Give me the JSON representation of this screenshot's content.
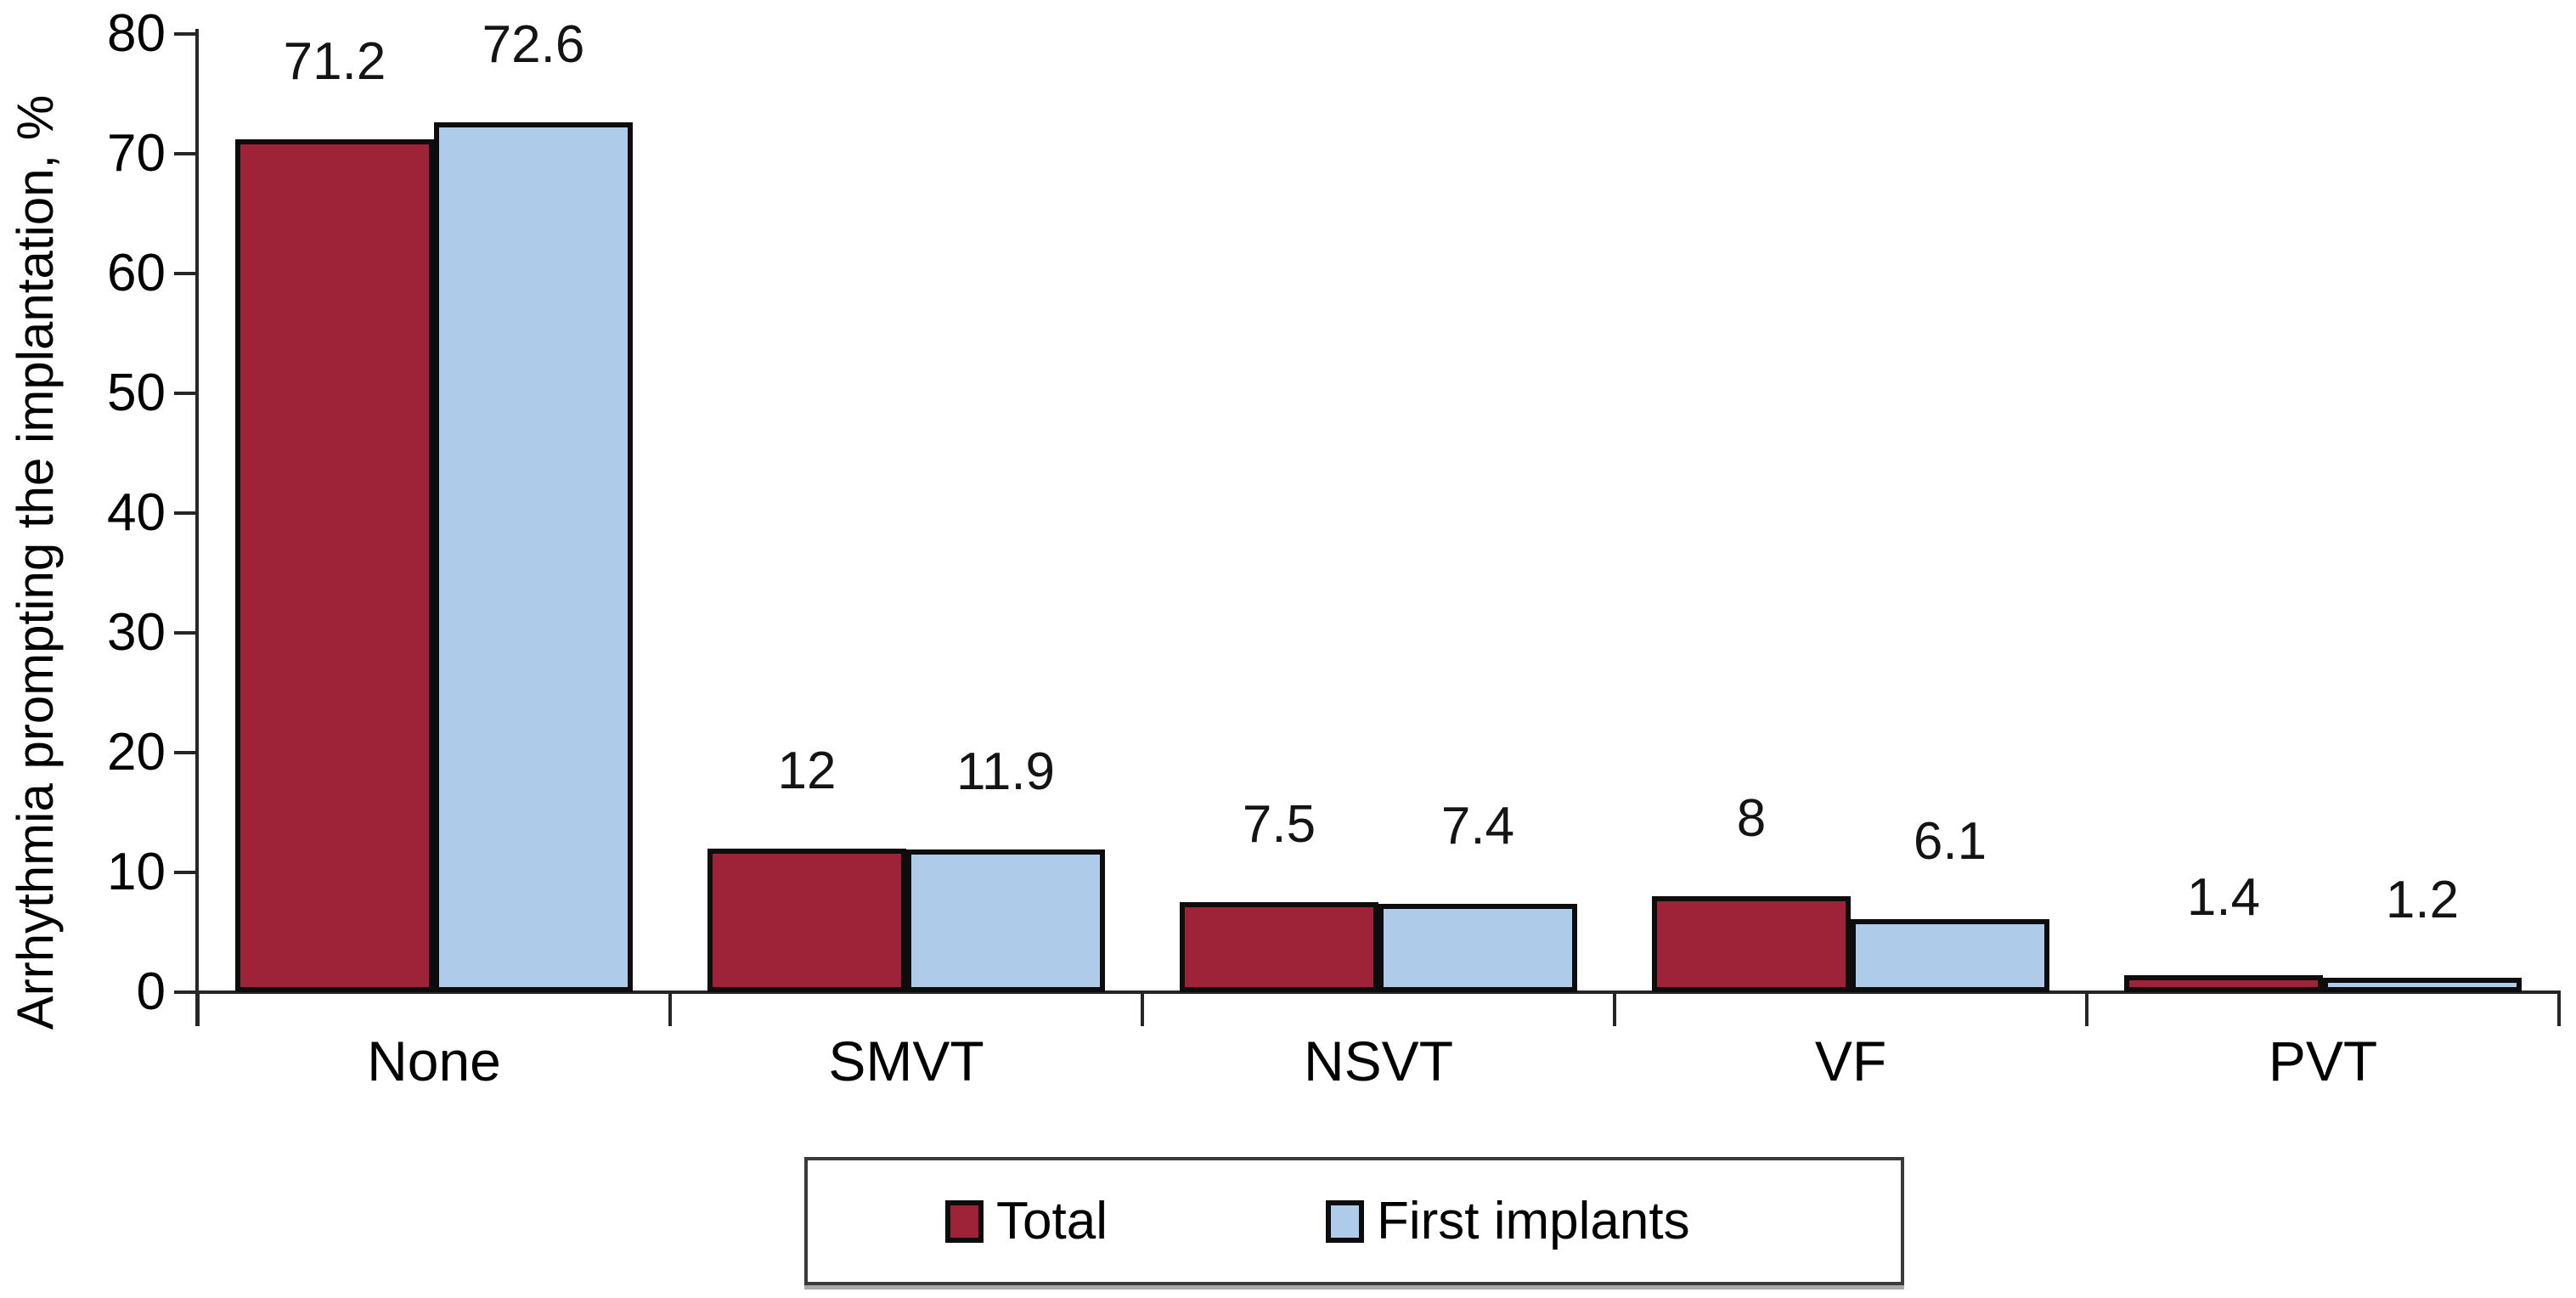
{
  "chart_data": {
    "type": "bar",
    "title": "",
    "xlabel": "",
    "ylabel": "Arrhythmia prompting the implantation, %",
    "ylim": [
      0,
      80
    ],
    "yticks": [
      0,
      10,
      20,
      30,
      40,
      50,
      60,
      70,
      80
    ],
    "grid": false,
    "legend_position": "bottom-center",
    "categories": [
      "None",
      "SMVT",
      "NSVT",
      "VF",
      "PVT"
    ],
    "series": [
      {
        "name": "Total",
        "color": "#9E2338",
        "values": [
          71.2,
          12,
          7.5,
          8,
          1.4
        ],
        "value_labels": [
          "71.2",
          "12",
          "7.5",
          "8",
          "1.4"
        ]
      },
      {
        "name": "First implants",
        "color": "#AECCEA",
        "values": [
          72.6,
          11.9,
          7.4,
          6.1,
          1.2
        ],
        "value_labels": [
          "72.6",
          "11.9",
          "7.4",
          "6.1",
          "1.2"
        ]
      }
    ]
  },
  "colors": {
    "bar_border": "#0d0d0d",
    "axis": "#262626",
    "text": "#000000",
    "legend_border": "#3a3a3a",
    "background": "#ffffff"
  }
}
